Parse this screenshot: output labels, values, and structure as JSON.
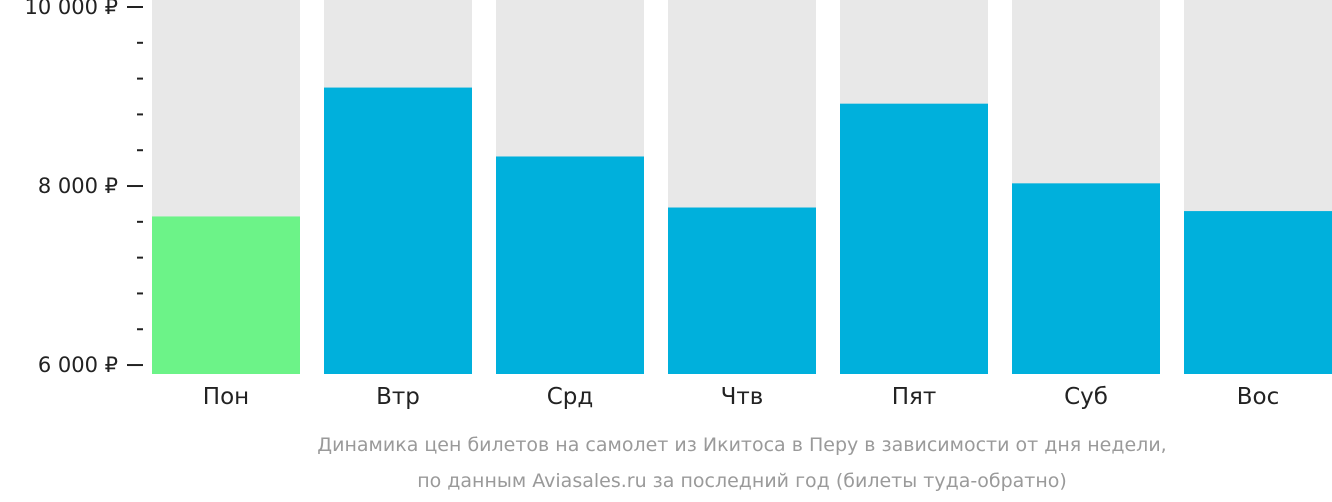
{
  "chart_data": {
    "type": "bar",
    "categories": [
      "Пон",
      "Втр",
      "Срд",
      "Чтв",
      "Пят",
      "Суб",
      "Вос"
    ],
    "values": [
      7660,
      9100,
      8330,
      7760,
      8920,
      8030,
      7720
    ],
    "ylim": [
      5900,
      10000
    ],
    "yticks": [
      6000,
      8000,
      10000
    ],
    "ytick_labels": [
      "6 000 ₽",
      "8 000 ₽",
      "10 000 ₽"
    ],
    "minor_ticks_between": 4,
    "highlight_index": 0,
    "colors": {
      "bar": "#00b0dc",
      "highlight": "#6cf388",
      "track": "#e8e8e8",
      "axis": "#222222"
    },
    "caption": [
      "Динамика цен билетов на самолет из Икитоса в Перу в зависимости от дня недели,",
      "по данным Aviasales.ru за последний год (билеты туда-обратно)"
    ]
  }
}
